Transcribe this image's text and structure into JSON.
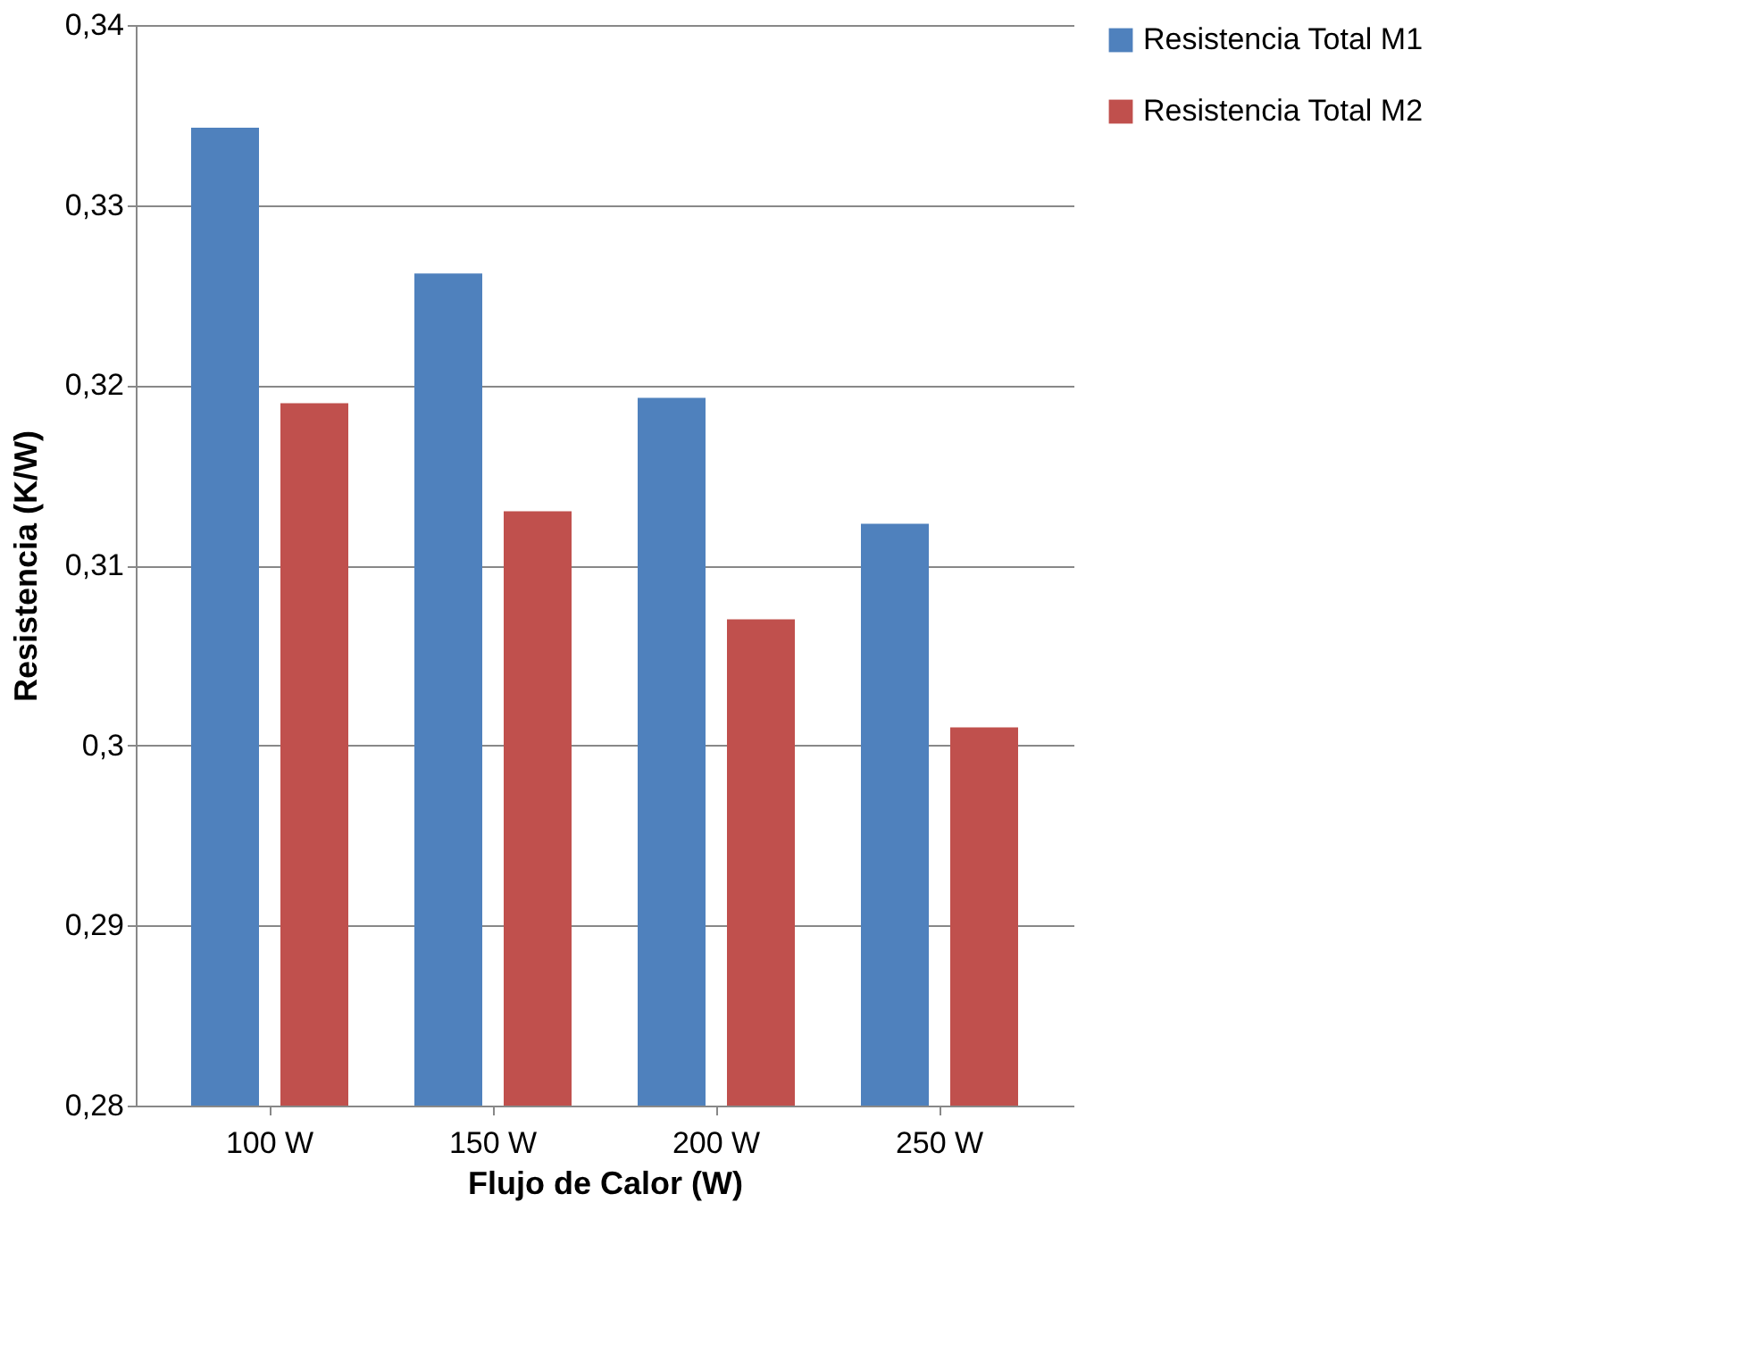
{
  "chart_data": {
    "type": "bar",
    "xlabel": "Flujo de Calor (W)",
    "ylabel": "Resistencia (K/W)",
    "categories": [
      "100 W",
      "150 W",
      "200 W",
      "250 W"
    ],
    "series": [
      {
        "name": "Resistencia Total M1",
        "color": "#4f81bd",
        "values": [
          0.3343,
          0.3262,
          0.3193,
          0.3123
        ]
      },
      {
        "name": "Resistencia Total M2",
        "color": "#c0504d",
        "values": [
          0.319,
          0.313,
          0.307,
          0.301
        ]
      }
    ],
    "ylim": [
      0.28,
      0.34
    ],
    "yticks": [
      {
        "value": 0.28,
        "label": "0,28"
      },
      {
        "value": 0.29,
        "label": "0,29"
      },
      {
        "value": 0.3,
        "label": "0,3"
      },
      {
        "value": 0.31,
        "label": "0,31"
      },
      {
        "value": 0.32,
        "label": "0,32"
      },
      {
        "value": 0.33,
        "label": "0,33"
      },
      {
        "value": 0.34,
        "label": "0,34"
      }
    ],
    "grid": "y",
    "legend": "right"
  }
}
